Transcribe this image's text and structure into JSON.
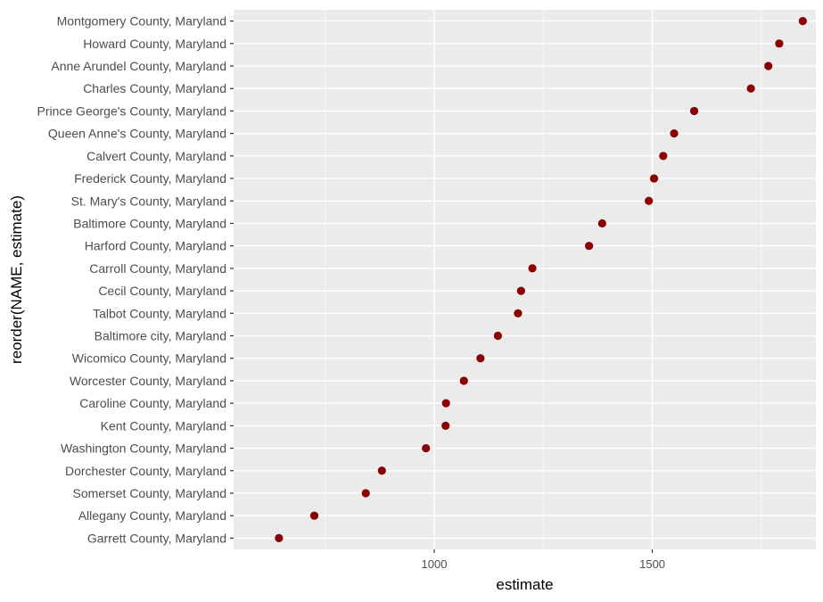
{
  "chart_data": {
    "type": "scatter",
    "xlabel": "estimate",
    "ylabel": "reorder(NAME, estimate)",
    "xlim": [
      540,
      1875
    ],
    "x_ticks": [
      1000,
      1500
    ],
    "x_tick_labels": [
      "1000",
      "1500"
    ],
    "grid": true,
    "point_color": "#8B0000",
    "panel_background": "#EBEBEB",
    "categories": [
      "Garrett County, Maryland",
      "Allegany County, Maryland",
      "Somerset County, Maryland",
      "Dorchester County, Maryland",
      "Washington County, Maryland",
      "Kent County, Maryland",
      "Caroline County, Maryland",
      "Worcester County, Maryland",
      "Wicomico County, Maryland",
      "Baltimore city, Maryland",
      "Talbot County, Maryland",
      "Cecil County, Maryland",
      "Carroll County, Maryland",
      "Harford County, Maryland",
      "Baltimore County, Maryland",
      "St. Mary's County, Maryland",
      "Frederick County, Maryland",
      "Calvert County, Maryland",
      "Queen Anne's County, Maryland",
      "Prince George's County, Maryland",
      "Charles County, Maryland",
      "Anne Arundel County, Maryland",
      "Howard County, Maryland",
      "Montgomery County, Maryland"
    ],
    "values": [
      644,
      725,
      843,
      880,
      981,
      1026,
      1027,
      1068,
      1106,
      1146,
      1192,
      1199,
      1225,
      1355,
      1385,
      1492,
      1504,
      1525,
      1550,
      1596,
      1726,
      1766,
      1791,
      1845
    ]
  }
}
